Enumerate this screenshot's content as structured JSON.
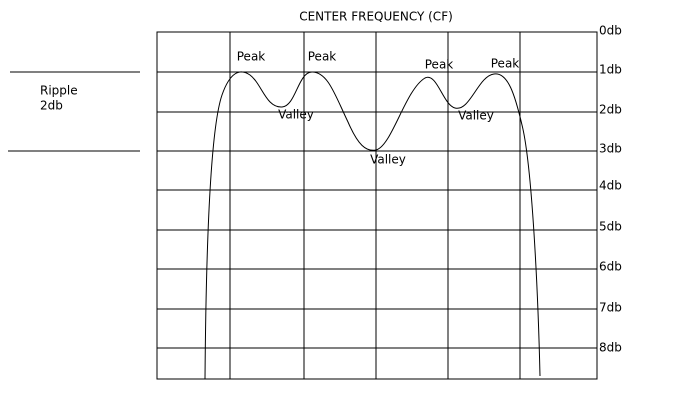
{
  "title": "CENTER FREQUENCY (CF)",
  "ripple": {
    "label": "Ripple",
    "value": "2db"
  },
  "scale_labels": [
    "0db",
    "1db",
    "2db",
    "3db",
    "4db",
    "5db",
    "6db",
    "7db",
    "8db"
  ],
  "annotations": [
    "Peak",
    "Peak",
    "Valley",
    "Valley",
    "Peak",
    "Valley",
    "Peak"
  ]
}
